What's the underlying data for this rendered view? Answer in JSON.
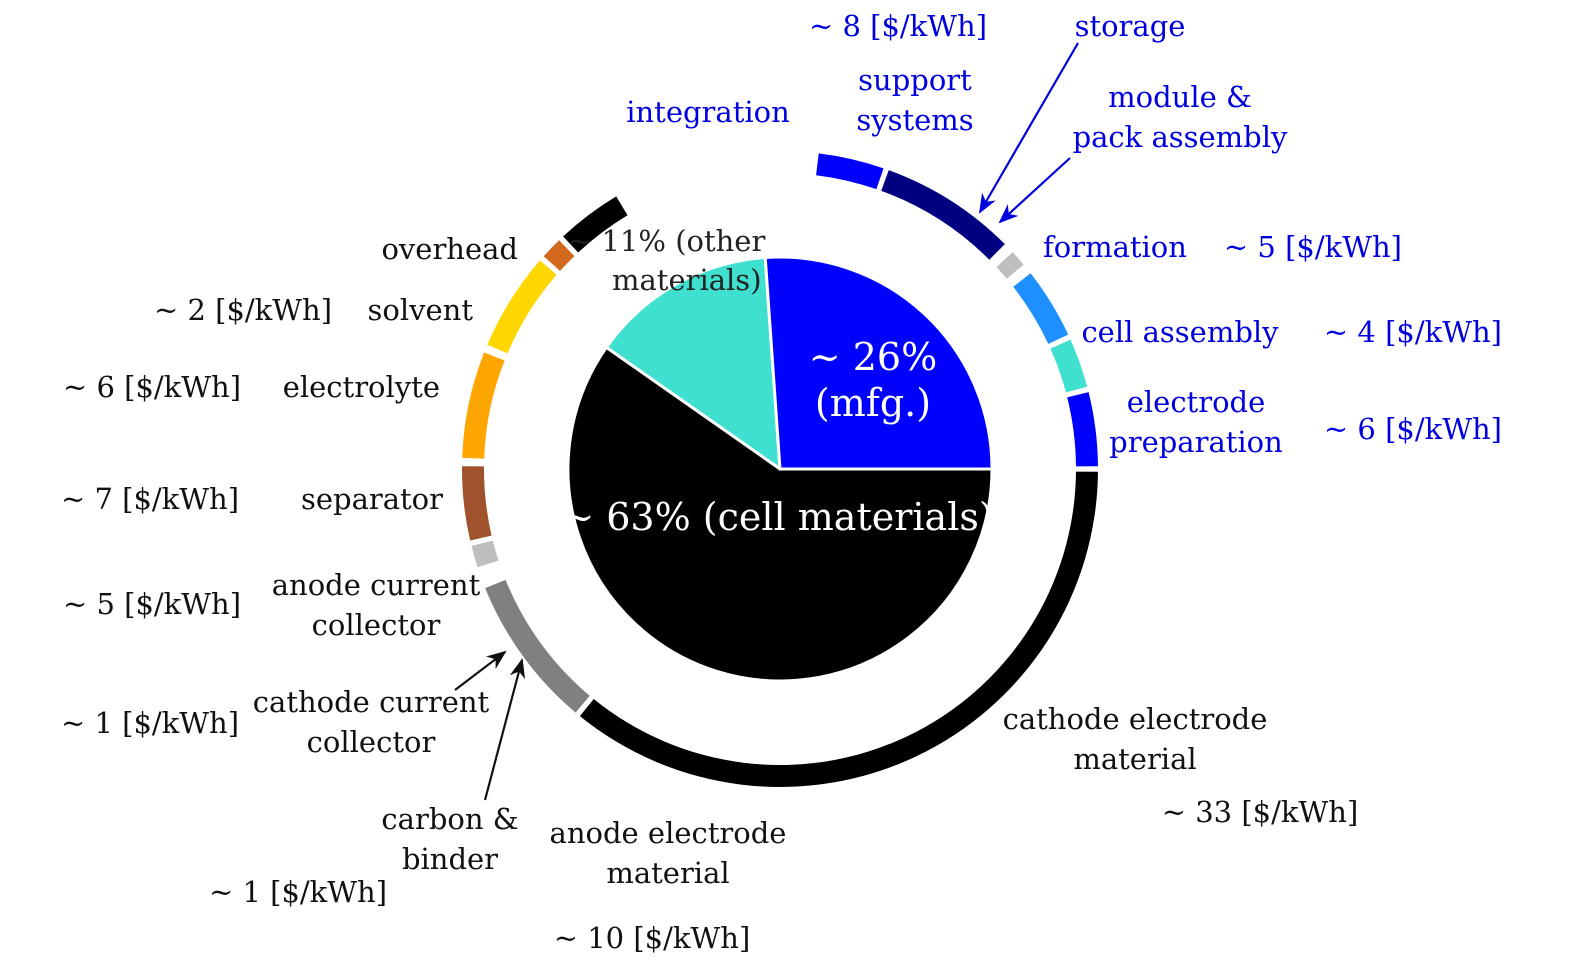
{
  "chart_data": {
    "type": "pie",
    "title": "",
    "inner_pie": [
      {
        "name": "mfg",
        "label_lines": [
          "~ 26%",
          "(mfg.)"
        ],
        "value": 26,
        "color": "#0000ff",
        "text_color": "#ffffff"
      },
      {
        "name": "cell-materials",
        "label_lines": [
          "~ 63% (cell materials)"
        ],
        "value": 63,
        "color": "#000000",
        "text_color": "#ffffff"
      },
      {
        "name": "other-materials",
        "label_lines": [
          "~ 11% (other",
          "materials)"
        ],
        "value": 11,
        "color": "#40e0d0",
        "text_color": "#222222"
      }
    ],
    "outer_ring": [
      {
        "name": "electrode-preparation",
        "label_lines": [
          "electrode",
          "preparation"
        ],
        "cost": "~ 6 [$/kWh]",
        "value": 6,
        "color": "#0000ff",
        "text_color": "#0000dd"
      },
      {
        "name": "cell-assembly",
        "label_lines": [
          "cell assembly"
        ],
        "cost": "~ 4 [$/kWh]",
        "value": 4,
        "color": "#40e0d0",
        "text_color": "#0000dd"
      },
      {
        "name": "formation",
        "label_lines": [
          "formation"
        ],
        "cost": "~ 5 [$/kWh]",
        "value": 5,
        "color": "#1e90ff",
        "text_color": "#0000dd"
      },
      {
        "name": "module-pack-assembly",
        "label_lines": [
          "module &",
          "pack assembly"
        ],
        "cost": "",
        "value": 1,
        "color": "#bebebe",
        "text_color": "#0000dd"
      },
      {
        "name": "storage",
        "label_lines": [
          "storage"
        ],
        "cost": "",
        "value": 0,
        "color": "#ffffff",
        "text_color": "#0000dd"
      },
      {
        "name": "support-systems",
        "label_lines": [
          "support",
          "systems"
        ],
        "cost": "~ 8 [$/kWh]",
        "value": 8,
        "color": "#000080",
        "text_color": "#0000dd"
      },
      {
        "name": "integration",
        "label_lines": [
          "integration"
        ],
        "cost": "",
        "value": 5,
        "color": "#0000ff",
        "text_color": "#0000dd"
      },
      {
        "name": "overhead",
        "label_lines": [
          "overhead"
        ],
        "cost": "",
        "value": 4,
        "color": "#000000",
        "text_color": "#111111"
      },
      {
        "name": "solvent",
        "label_lines": [
          "solvent"
        ],
        "cost": "~ 2 [$/kWh]",
        "value": 2,
        "color": "#d2691e",
        "text_color": "#111111"
      },
      {
        "name": "electrolyte",
        "label_lines": [
          "electrolyte"
        ],
        "cost": "~ 6 [$/kWh]",
        "value": 6,
        "color": "#ffd700",
        "text_color": "#111111"
      },
      {
        "name": "separator",
        "label_lines": [
          "separator"
        ],
        "cost": "~ 7 [$/kWh]",
        "value": 7,
        "color": "#ffa500",
        "text_color": "#111111"
      },
      {
        "name": "anode-current-collector",
        "label_lines": [
          "anode current",
          "collector"
        ],
        "cost": "~ 5 [$/kWh]",
        "value": 5,
        "color": "#a0522d",
        "text_color": "#111111"
      },
      {
        "name": "cathode-current-collector",
        "label_lines": [
          "cathode current",
          "collector"
        ],
        "cost": "~ 1 [$/kWh]",
        "value": 1,
        "color": "#bebebe",
        "text_color": "#111111"
      },
      {
        "name": "carbon-binder",
        "label_lines": [
          "carbon &",
          "binder"
        ],
        "cost": "~ 1 [$/kWh]",
        "value": 1,
        "color": "#ffffff",
        "text_color": "#111111"
      },
      {
        "name": "anode-electrode-material",
        "label_lines": [
          "anode electrode",
          "material"
        ],
        "cost": "~ 10 [$/kWh]",
        "value": 10,
        "color": "#808080",
        "text_color": "#111111"
      },
      {
        "name": "cathode-electrode-material",
        "label_lines": [
          "cathode electrode",
          "material"
        ],
        "cost": "~ 33 [$/kWh]",
        "value": 33,
        "color": "#000000",
        "text_color": "#111111"
      }
    ]
  }
}
